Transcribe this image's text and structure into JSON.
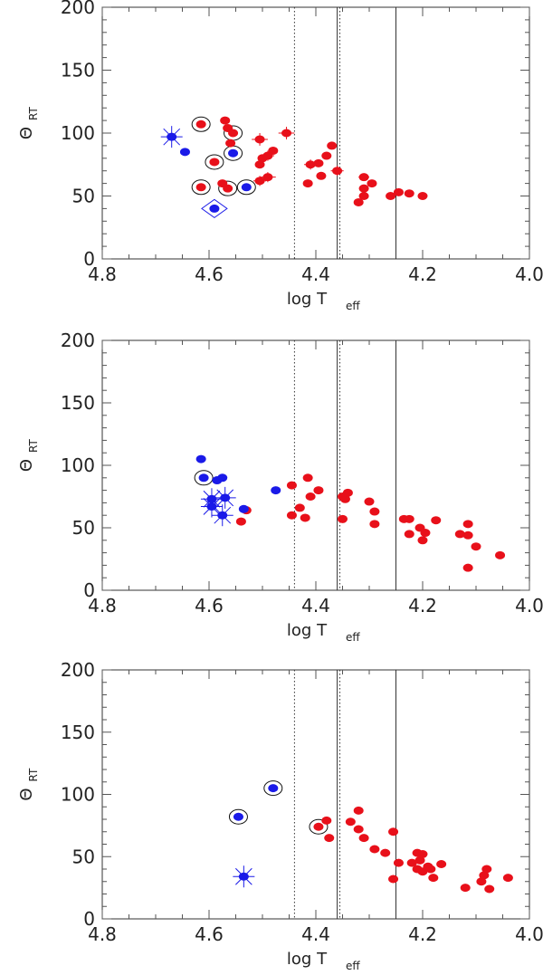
{
  "chart_data": [
    {
      "type": "scatter",
      "xlim": [
        4.8,
        4.0
      ],
      "ylim": [
        0,
        200
      ],
      "x_ticks": [
        "4.8",
        "4.6",
        "4.4",
        "4.2",
        "4.0"
      ],
      "y_ticks": [
        "0",
        "50",
        "100",
        "150",
        "200"
      ],
      "xlabel": {
        "main": "log T",
        "sub": "eff"
      },
      "ylabel": {
        "main": "Θ",
        "sub": "RT"
      },
      "reference_lines": [
        {
          "x": 4.44,
          "style": "dotted"
        },
        {
          "x": 4.36,
          "style": "solid"
        },
        {
          "x": 4.355,
          "style": "dotted"
        },
        {
          "x": 4.25,
          "style": "solid"
        }
      ],
      "series": [
        {
          "color": "#e8101a",
          "points": [
            [
              4.615,
              107
            ],
            [
              4.57,
              110
            ],
            [
              4.565,
              104
            ],
            [
              4.555,
              100
            ],
            [
              4.56,
              92
            ],
            [
              4.59,
              77
            ],
            [
              4.615,
              57
            ],
            [
              4.575,
              60
            ],
            [
              4.565,
              56
            ],
            [
              4.505,
              95
            ],
            [
              4.5,
              80
            ],
            [
              4.505,
              75
            ],
            [
              4.49,
              82
            ],
            [
              4.48,
              86
            ],
            [
              4.455,
              100
            ],
            [
              4.505,
              62
            ],
            [
              4.49,
              65
            ],
            [
              4.415,
              60
            ],
            [
              4.41,
              75
            ],
            [
              4.395,
              76
            ],
            [
              4.39,
              66
            ],
            [
              4.38,
              82
            ],
            [
              4.37,
              90
            ],
            [
              4.36,
              70
            ],
            [
              4.31,
              65
            ],
            [
              4.31,
              56
            ],
            [
              4.31,
              50
            ],
            [
              4.295,
              60
            ],
            [
              4.32,
              45
            ],
            [
              4.26,
              50
            ],
            [
              4.245,
              53
            ],
            [
              4.225,
              52
            ],
            [
              4.2,
              50
            ]
          ]
        },
        {
          "color": "#1a1ae8",
          "points": [
            [
              4.645,
              85
            ],
            [
              4.555,
              84
            ],
            [
              4.53,
              57
            ],
            [
              4.59,
              40
            ],
            [
              4.67,
              97
            ]
          ]
        }
      ],
      "special_markers": [
        {
          "x": 4.615,
          "y": 107,
          "marker": "circle"
        },
        {
          "x": 4.555,
          "y": 100,
          "marker": "circle"
        },
        {
          "x": 4.59,
          "y": 77,
          "marker": "circle"
        },
        {
          "x": 4.615,
          "y": 57,
          "marker": "circle"
        },
        {
          "x": 4.565,
          "y": 56,
          "marker": "circle"
        },
        {
          "x": 4.555,
          "y": 84,
          "marker": "circle"
        },
        {
          "x": 4.53,
          "y": 57,
          "marker": "circle"
        },
        {
          "x": 4.59,
          "y": 40,
          "marker": "diamond"
        },
        {
          "x": 4.67,
          "y": 97,
          "marker": "star"
        }
      ],
      "error_bars": [
        {
          "x": 4.505,
          "y": 95,
          "dx": 0.015,
          "dy": 5
        },
        {
          "x": 4.49,
          "y": 82,
          "dx": 0.012,
          "dy": 4
        },
        {
          "x": 4.455,
          "y": 100,
          "dx": 0.015,
          "dy": 5
        },
        {
          "x": 4.505,
          "y": 62,
          "dx": 0.012,
          "dy": 4
        },
        {
          "x": 4.49,
          "y": 65,
          "dx": 0.015,
          "dy": 4
        },
        {
          "x": 4.41,
          "y": 75,
          "dx": 0.012,
          "dy": 4
        },
        {
          "x": 4.36,
          "y": 70,
          "dx": 0.012,
          "dy": 4
        },
        {
          "x": 4.31,
          "y": 65,
          "dx": 0.01,
          "dy": 3
        }
      ]
    },
    {
      "type": "scatter",
      "xlim": [
        4.8,
        4.0
      ],
      "ylim": [
        0,
        200
      ],
      "x_ticks": [
        "4.8",
        "4.6",
        "4.4",
        "4.2",
        "4.0"
      ],
      "y_ticks": [
        "0",
        "50",
        "100",
        "150",
        "200"
      ],
      "xlabel": {
        "main": "log T",
        "sub": "eff"
      },
      "ylabel": {
        "main": "Θ",
        "sub": "RT"
      },
      "reference_lines": [
        {
          "x": 4.44,
          "style": "dotted"
        },
        {
          "x": 4.36,
          "style": "solid"
        },
        {
          "x": 4.355,
          "style": "dotted"
        },
        {
          "x": 4.25,
          "style": "solid"
        }
      ],
      "series": [
        {
          "color": "#e8101a",
          "points": [
            [
              4.54,
              55
            ],
            [
              4.53,
              64
            ],
            [
              4.445,
              60
            ],
            [
              4.445,
              84
            ],
            [
              4.43,
              66
            ],
            [
              4.42,
              58
            ],
            [
              4.41,
              75
            ],
            [
              4.415,
              90
            ],
            [
              4.395,
              80
            ],
            [
              4.35,
              75
            ],
            [
              4.35,
              57
            ],
            [
              4.345,
              73
            ],
            [
              4.34,
              78
            ],
            [
              4.3,
              71
            ],
            [
              4.29,
              63
            ],
            [
              4.29,
              53
            ],
            [
              4.235,
              57
            ],
            [
              4.225,
              57
            ],
            [
              4.225,
              45
            ],
            [
              4.205,
              50
            ],
            [
              4.195,
              46
            ],
            [
              4.2,
              40
            ],
            [
              4.175,
              56
            ],
            [
              4.13,
              45
            ],
            [
              4.115,
              44
            ],
            [
              4.115,
              53
            ],
            [
              4.1,
              35
            ],
            [
              4.115,
              18
            ],
            [
              4.055,
              28
            ]
          ]
        },
        {
          "color": "#1a1ae8",
          "points": [
            [
              4.615,
              105
            ],
            [
              4.61,
              90
            ],
            [
              4.585,
              88
            ],
            [
              4.575,
              90
            ],
            [
              4.475,
              80
            ],
            [
              4.535,
              65
            ],
            [
              4.595,
              73
            ],
            [
              4.57,
              74
            ],
            [
              4.595,
              67
            ],
            [
              4.575,
              60
            ]
          ]
        }
      ],
      "special_markers": [
        {
          "x": 4.61,
          "y": 90,
          "marker": "circle"
        },
        {
          "x": 4.595,
          "y": 73,
          "marker": "star"
        },
        {
          "x": 4.57,
          "y": 74,
          "marker": "star"
        },
        {
          "x": 4.595,
          "y": 67,
          "marker": "star"
        },
        {
          "x": 4.575,
          "y": 60,
          "marker": "star"
        }
      ],
      "error_bars": []
    },
    {
      "type": "scatter",
      "xlim": [
        4.8,
        4.0
      ],
      "ylim": [
        0,
        200
      ],
      "x_ticks": [
        "4.8",
        "4.6",
        "4.4",
        "4.2",
        "4.0"
      ],
      "y_ticks": [
        "0",
        "50",
        "100",
        "150",
        "200"
      ],
      "xlabel": {
        "main": "log T",
        "sub": "eff"
      },
      "ylabel": {
        "main": "Θ",
        "sub": "RT"
      },
      "reference_lines": [
        {
          "x": 4.44,
          "style": "dotted"
        },
        {
          "x": 4.36,
          "style": "solid"
        },
        {
          "x": 4.355,
          "style": "dotted"
        },
        {
          "x": 4.25,
          "style": "solid"
        }
      ],
      "series": [
        {
          "color": "#e8101a",
          "points": [
            [
              4.395,
              74
            ],
            [
              4.38,
              79
            ],
            [
              4.375,
              65
            ],
            [
              4.335,
              78
            ],
            [
              4.32,
              87
            ],
            [
              4.32,
              72
            ],
            [
              4.31,
              65
            ],
            [
              4.29,
              56
            ],
            [
              4.27,
              53
            ],
            [
              4.255,
              70
            ],
            [
              4.255,
              32
            ],
            [
              4.245,
              45
            ],
            [
              4.22,
              45
            ],
            [
              4.21,
              53
            ],
            [
              4.2,
              52
            ],
            [
              4.205,
              47
            ],
            [
              4.21,
              40
            ],
            [
              4.2,
              38
            ],
            [
              4.19,
              42
            ],
            [
              4.185,
              40
            ],
            [
              4.18,
              33
            ],
            [
              4.165,
              44
            ],
            [
              4.12,
              25
            ],
            [
              4.09,
              30
            ],
            [
              4.085,
              35
            ],
            [
              4.08,
              40
            ],
            [
              4.075,
              24
            ],
            [
              4.04,
              33
            ]
          ]
        },
        {
          "color": "#1a1ae8",
          "points": [
            [
              4.48,
              105
            ],
            [
              4.545,
              82
            ],
            [
              4.535,
              34
            ]
          ]
        }
      ],
      "special_markers": [
        {
          "x": 4.395,
          "y": 74,
          "marker": "circle"
        },
        {
          "x": 4.48,
          "y": 105,
          "marker": "circle"
        },
        {
          "x": 4.545,
          "y": 82,
          "marker": "circle"
        },
        {
          "x": 4.535,
          "y": 34,
          "marker": "star"
        }
      ],
      "error_bars": []
    }
  ]
}
